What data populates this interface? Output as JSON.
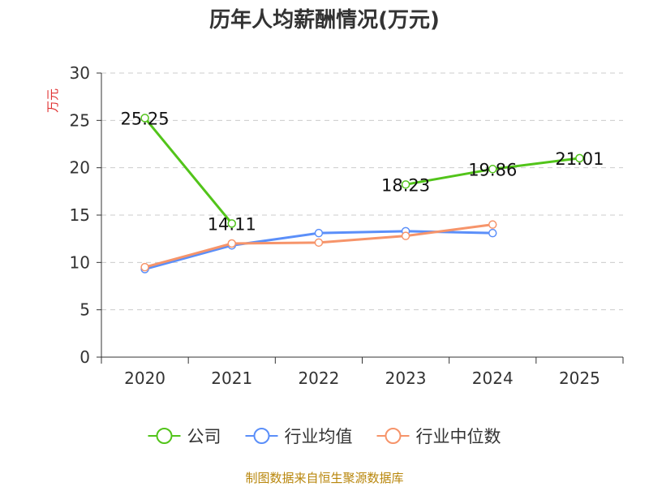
{
  "title": "历年人均薪酬情况(万元)",
  "source": "制图数据来自恒生聚源数据库",
  "chart_data": {
    "type": "line",
    "title": "历年人均薪酬情况(万元)",
    "ylabel": "万元",
    "categories": [
      "2020",
      "2021",
      "2022",
      "2023",
      "2024",
      "2025"
    ],
    "ylim": [
      0,
      30
    ],
    "yticks": [
      0,
      5,
      10,
      15,
      20,
      25,
      30
    ],
    "grid": true,
    "legend_position": "bottom",
    "series": [
      {
        "name": "公司",
        "color": "#52c41a",
        "values": [
          25.25,
          14.11,
          null,
          18.23,
          19.86,
          21.01
        ],
        "show_labels": true
      },
      {
        "name": "行业均值",
        "color": "#5b8ff9",
        "values": [
          9.3,
          11.8,
          13.1,
          13.3,
          13.1,
          null
        ],
        "show_labels": false
      },
      {
        "name": "行业中位数",
        "color": "#f6946a",
        "values": [
          9.5,
          12.0,
          12.1,
          12.8,
          14.0,
          null
        ],
        "show_labels": false
      }
    ]
  }
}
